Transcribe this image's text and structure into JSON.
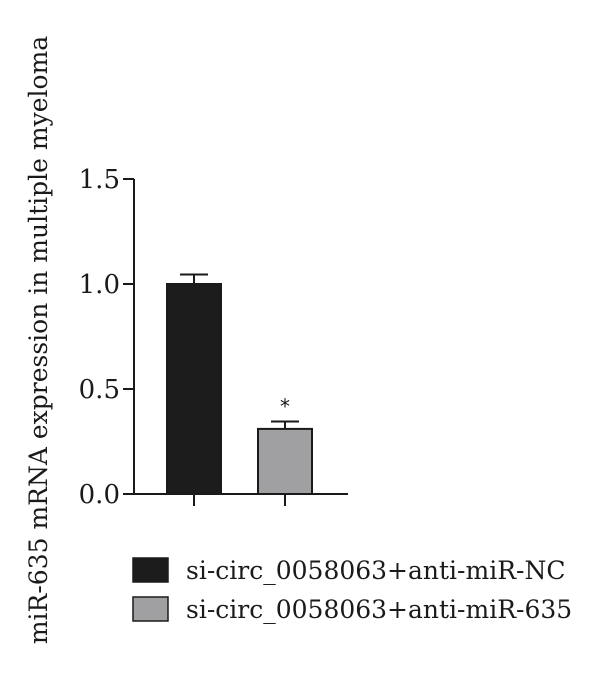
{
  "chart_data": {
    "type": "bar",
    "title": "",
    "xlabel": "",
    "ylabel": "miR-635 mRNA expression in multiple myeloma",
    "ylim": [
      0,
      1.5
    ],
    "yticks": [
      "0.0",
      "0.5",
      "1.0",
      "1.5"
    ],
    "grid": false,
    "legend_position": "bottom",
    "series": [
      {
        "name": "si-circ_0058063+anti-miR-NC",
        "value": 1.0,
        "error": 0.045,
        "color": "#1c1c1c",
        "annotation": ""
      },
      {
        "name": "si-circ_0058063+anti-miR-635",
        "value": 0.31,
        "error": 0.035,
        "color": "#a0a0a3",
        "annotation": "*"
      }
    ]
  }
}
